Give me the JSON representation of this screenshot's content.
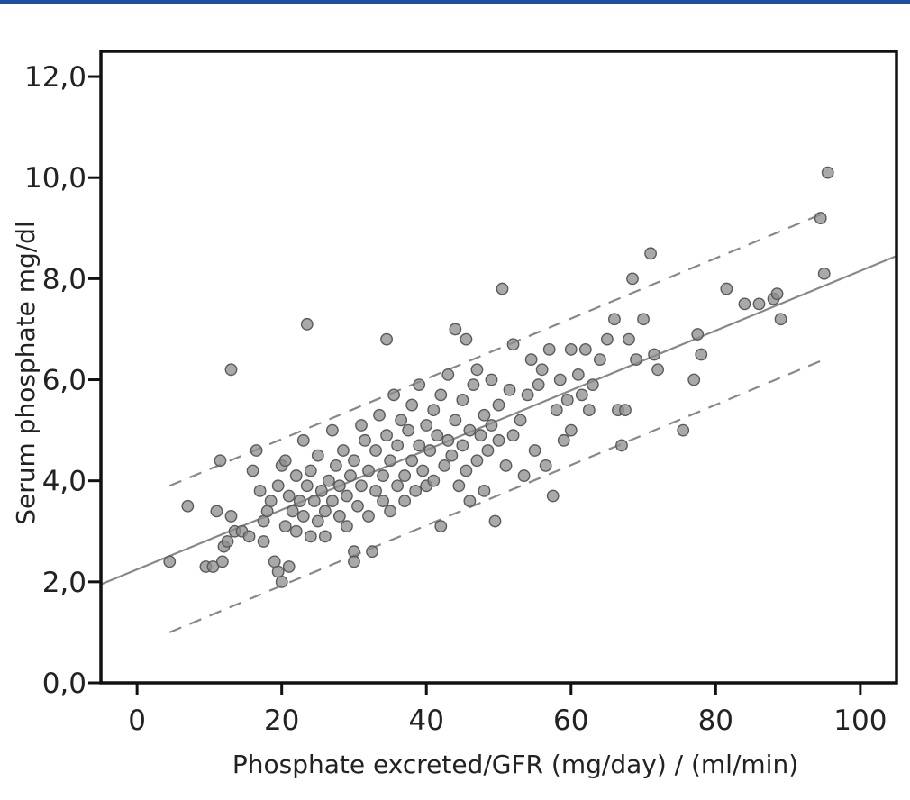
{
  "chart_data": {
    "type": "scatter",
    "title": "",
    "xlabel": "Phosphate excreted/GFR (mg/day) / (ml/min)",
    "ylabel": "Serum phosphate mg/dl",
    "xlim": [
      -5,
      105
    ],
    "ylim": [
      0,
      12.5
    ],
    "x_ticks": [
      0,
      20,
      40,
      60,
      80,
      100
    ],
    "x_tick_labels": [
      "0",
      "20",
      "40",
      "60",
      "80",
      "100"
    ],
    "y_ticks": [
      0,
      2,
      4,
      6,
      8,
      10,
      12
    ],
    "y_tick_labels": [
      "0,0",
      "2,0",
      "4,0",
      "6,0",
      "8,0",
      "10,0",
      "12,0"
    ],
    "grid": false,
    "legend": "none",
    "colors": {
      "points": "#8c8c8c",
      "point_edge": "#5a5a5a",
      "lines": "#888888",
      "axes": "#111111",
      "top_rule": "#1f4fa3"
    },
    "lines": [
      {
        "style": "solid",
        "x": [
          -5,
          105
        ],
        "y": [
          1.95,
          8.45
        ]
      },
      {
        "style": "dashed",
        "x": [
          4.5,
          95
        ],
        "y": [
          3.9,
          9.3
        ]
      },
      {
        "style": "dashed",
        "x": [
          4.5,
          95
        ],
        "y": [
          1.0,
          6.4
        ]
      }
    ],
    "points": [
      [
        4.5,
        2.4
      ],
      [
        7,
        3.5
      ],
      [
        9.5,
        2.3
      ],
      [
        10.5,
        2.3
      ],
      [
        11,
        3.4
      ],
      [
        11.5,
        4.4
      ],
      [
        11.8,
        2.4
      ],
      [
        12,
        2.7
      ],
      [
        12.5,
        2.8
      ],
      [
        13,
        6.2
      ],
      [
        13,
        3.3
      ],
      [
        13.5,
        3.0
      ],
      [
        14.5,
        3.0
      ],
      [
        15.5,
        2.9
      ],
      [
        16,
        4.2
      ],
      [
        16.5,
        4.6
      ],
      [
        17,
        3.8
      ],
      [
        17.5,
        3.2
      ],
      [
        17.5,
        2.8
      ],
      [
        18,
        3.4
      ],
      [
        18.5,
        3.6
      ],
      [
        19,
        2.4
      ],
      [
        19.5,
        3.9
      ],
      [
        19.5,
        2.2
      ],
      [
        20,
        2.0
      ],
      [
        20,
        4.3
      ],
      [
        20.5,
        4.4
      ],
      [
        20.5,
        3.1
      ],
      [
        21,
        2.3
      ],
      [
        21,
        3.7
      ],
      [
        21.5,
        3.4
      ],
      [
        22,
        4.1
      ],
      [
        22,
        3.0
      ],
      [
        22.5,
        3.6
      ],
      [
        23,
        3.3
      ],
      [
        23,
        4.8
      ],
      [
        23.5,
        7.1
      ],
      [
        23.5,
        3.9
      ],
      [
        24,
        2.9
      ],
      [
        24,
        4.2
      ],
      [
        24.5,
        3.6
      ],
      [
        25,
        3.2
      ],
      [
        25,
        4.5
      ],
      [
        25.5,
        3.8
      ],
      [
        26,
        3.4
      ],
      [
        26,
        2.9
      ],
      [
        26.5,
        4.0
      ],
      [
        27,
        3.6
      ],
      [
        27,
        5.0
      ],
      [
        27.5,
        4.3
      ],
      [
        28,
        3.3
      ],
      [
        28,
        3.9
      ],
      [
        28.5,
        4.6
      ],
      [
        29,
        3.1
      ],
      [
        29,
        3.7
      ],
      [
        29.5,
        4.1
      ],
      [
        30,
        2.6
      ],
      [
        30,
        2.4
      ],
      [
        30,
        4.4
      ],
      [
        30.5,
        3.5
      ],
      [
        31,
        3.9
      ],
      [
        31,
        5.1
      ],
      [
        31.5,
        4.8
      ],
      [
        32,
        3.3
      ],
      [
        32,
        4.2
      ],
      [
        32.5,
        2.6
      ],
      [
        33,
        3.8
      ],
      [
        33,
        4.6
      ],
      [
        33.5,
        5.3
      ],
      [
        34,
        3.6
      ],
      [
        34,
        4.1
      ],
      [
        34.5,
        6.8
      ],
      [
        34.5,
        4.9
      ],
      [
        35,
        3.4
      ],
      [
        35,
        4.4
      ],
      [
        35.5,
        5.7
      ],
      [
        36,
        3.9
      ],
      [
        36,
        4.7
      ],
      [
        36.5,
        5.2
      ],
      [
        37,
        4.1
      ],
      [
        37,
        3.6
      ],
      [
        37.5,
        5.0
      ],
      [
        38,
        4.4
      ],
      [
        38,
        5.5
      ],
      [
        38.5,
        3.8
      ],
      [
        39,
        4.7
      ],
      [
        39,
        5.9
      ],
      [
        39.5,
        4.2
      ],
      [
        40,
        3.9
      ],
      [
        40,
        5.1
      ],
      [
        40.5,
        4.6
      ],
      [
        41,
        5.4
      ],
      [
        41,
        4.0
      ],
      [
        41.5,
        4.9
      ],
      [
        42,
        3.1
      ],
      [
        42,
        5.7
      ],
      [
        42.5,
        4.3
      ],
      [
        43,
        4.8
      ],
      [
        43,
        6.1
      ],
      [
        43.5,
        4.5
      ],
      [
        44,
        7.0
      ],
      [
        44,
        5.2
      ],
      [
        44.5,
        3.9
      ],
      [
        45,
        4.7
      ],
      [
        45,
        5.6
      ],
      [
        45.5,
        6.8
      ],
      [
        45.5,
        4.2
      ],
      [
        46,
        5.0
      ],
      [
        46,
        3.6
      ],
      [
        46.5,
        5.9
      ],
      [
        47,
        4.4
      ],
      [
        47,
        6.2
      ],
      [
        47.5,
        4.9
      ],
      [
        48,
        5.3
      ],
      [
        48,
        3.8
      ],
      [
        48.5,
        4.6
      ],
      [
        49,
        5.1
      ],
      [
        49,
        6.0
      ],
      [
        49.5,
        3.2
      ],
      [
        50,
        4.8
      ],
      [
        50,
        5.5
      ],
      [
        50.5,
        7.8
      ],
      [
        51,
        4.3
      ],
      [
        51.5,
        5.8
      ],
      [
        52,
        6.7
      ],
      [
        52,
        4.9
      ],
      [
        53,
        5.2
      ],
      [
        53.5,
        4.1
      ],
      [
        54,
        5.7
      ],
      [
        54.5,
        6.4
      ],
      [
        55,
        4.6
      ],
      [
        55.5,
        5.9
      ],
      [
        56,
        6.2
      ],
      [
        56.5,
        4.3
      ],
      [
        57,
        6.6
      ],
      [
        57.5,
        3.7
      ],
      [
        58,
        5.4
      ],
      [
        58.5,
        6.0
      ],
      [
        59,
        4.8
      ],
      [
        59.5,
        5.6
      ],
      [
        60,
        6.6
      ],
      [
        60,
        5.0
      ],
      [
        61,
        6.1
      ],
      [
        61.5,
        5.7
      ],
      [
        62,
        6.6
      ],
      [
        62.5,
        5.4
      ],
      [
        63,
        5.9
      ],
      [
        64,
        6.4
      ],
      [
        65,
        6.8
      ],
      [
        66,
        7.2
      ],
      [
        66.5,
        5.4
      ],
      [
        67,
        4.7
      ],
      [
        67.5,
        5.4
      ],
      [
        68,
        6.8
      ],
      [
        68.5,
        8.0
      ],
      [
        69,
        6.4
      ],
      [
        70,
        7.2
      ],
      [
        71,
        8.5
      ],
      [
        71.5,
        6.5
      ],
      [
        72,
        6.2
      ],
      [
        75.5,
        5.0
      ],
      [
        77,
        6.0
      ],
      [
        77.5,
        6.9
      ],
      [
        78,
        6.5
      ],
      [
        81.5,
        7.8
      ],
      [
        84,
        7.5
      ],
      [
        86,
        7.5
      ],
      [
        88,
        7.6
      ],
      [
        88.5,
        7.7
      ],
      [
        89,
        7.2
      ],
      [
        94.5,
        9.2
      ],
      [
        95,
        8.1
      ],
      [
        95.5,
        10.1
      ]
    ]
  }
}
